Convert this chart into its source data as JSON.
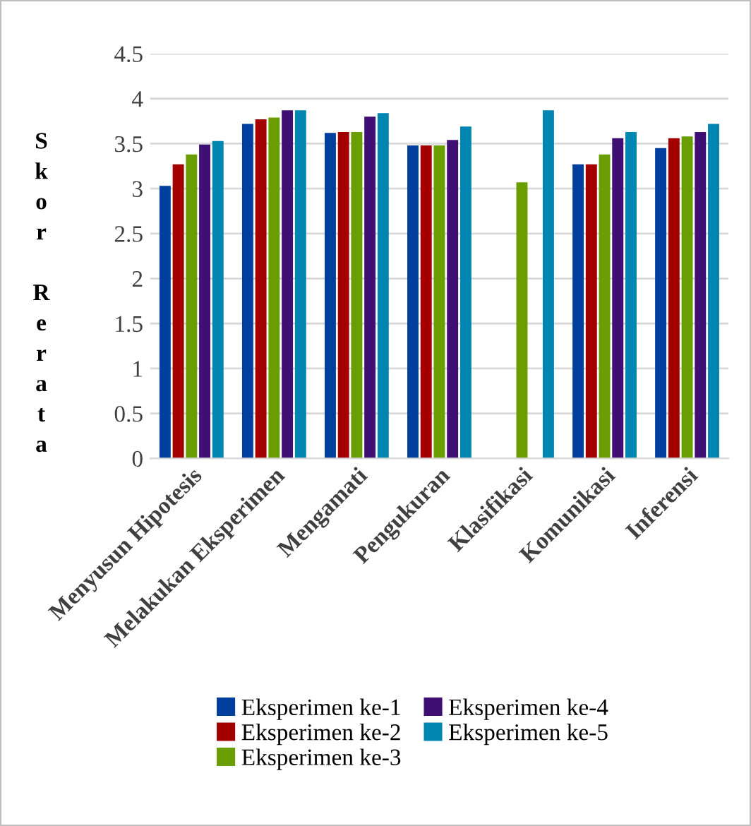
{
  "chart_data": {
    "type": "bar",
    "ylabel": "Skor Rerata",
    "categories": [
      "Menyusun Hipotesis",
      "Melakukan Eksperimen",
      "Mengamati",
      "Pengukuran",
      "Klasifikasi",
      "Komunikasi",
      "Inferensi"
    ],
    "series": [
      {
        "name": "Eksperimen ke-1",
        "color": "#003f9e",
        "values": [
          3.03,
          3.72,
          3.62,
          3.48,
          null,
          3.27,
          3.45
        ]
      },
      {
        "name": "Eksperimen ke-2",
        "color": "#a50000",
        "values": [
          3.27,
          3.77,
          3.63,
          3.48,
          null,
          3.27,
          3.56
        ]
      },
      {
        "name": "Eksperimen ke-3",
        "color": "#6a9e00",
        "values": [
          3.38,
          3.79,
          3.63,
          3.48,
          3.07,
          3.38,
          3.58
        ]
      },
      {
        "name": "Eksperimen ke-4",
        "color": "#3f0f74",
        "values": [
          3.49,
          3.87,
          3.8,
          3.54,
          null,
          3.56,
          3.63
        ]
      },
      {
        "name": "Eksperimen ke-5",
        "color": "#0086b0",
        "values": [
          3.53,
          3.87,
          3.84,
          3.69,
          3.87,
          3.63,
          3.72
        ]
      }
    ],
    "ylim": [
      0,
      4.5
    ],
    "yticks": [
      0,
      {
        "value": 0.5,
        "label": "0.5"
      },
      1,
      {
        "value": 1.5,
        "label": "1.5"
      },
      2,
      {
        "value": 2.5,
        "label": "2.5"
      },
      3,
      {
        "value": 3.5,
        "label": "3.5"
      },
      4,
      {
        "value": 4.5,
        "label": "4.5"
      }
    ],
    "grid": "y",
    "legend": "bottom"
  }
}
